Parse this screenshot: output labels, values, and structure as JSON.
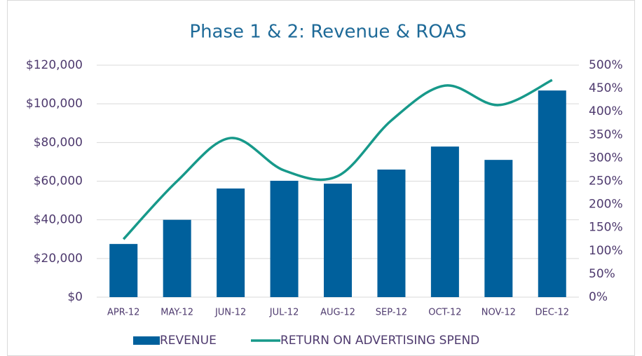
{
  "chart_data": {
    "type": "bar_line",
    "title": "Phase 1 & 2: Revenue & ROAS",
    "categories": [
      "APR-12",
      "MAY-12",
      "JUN-12",
      "JUL-12",
      "AUG-12",
      "SEP-12",
      "OCT-12",
      "NOV-12",
      "DEC-12"
    ],
    "series": [
      {
        "name": "REVENUE",
        "type": "bar",
        "color": "#00609c",
        "values": [
          27500,
          40000,
          56200,
          60200,
          58700,
          66000,
          77900,
          71000,
          106900
        ]
      },
      {
        "name": "RETURN ON ADVERTISING SPEND",
        "type": "line",
        "axis": "y2",
        "color": "#17998a",
        "values": [
          125,
          250,
          343,
          273,
          261,
          381,
          456,
          414,
          468
        ]
      }
    ],
    "ylim": [
      0,
      120000
    ],
    "yticks": [
      {
        "value": 0,
        "label": "$0"
      },
      {
        "value": 20000,
        "label": "$20,000"
      },
      {
        "value": 40000,
        "label": "$40,000"
      },
      {
        "value": 60000,
        "label": "$60,000"
      },
      {
        "value": 80000,
        "label": "$80,000"
      },
      {
        "value": 100000,
        "label": "$100,000"
      },
      {
        "value": 120000,
        "label": "$120,000"
      }
    ],
    "y2lim": [
      0,
      500
    ],
    "y2ticks": [
      {
        "value": 0,
        "label": "0%"
      },
      {
        "value": 50,
        "label": "50%"
      },
      {
        "value": 100,
        "label": "100%"
      },
      {
        "value": 150,
        "label": "150%"
      },
      {
        "value": 200,
        "label": "200%"
      },
      {
        "value": 250,
        "label": "250%"
      },
      {
        "value": 300,
        "label": "300%"
      },
      {
        "value": 350,
        "label": "350%"
      },
      {
        "value": 400,
        "label": "400%"
      },
      {
        "value": 450,
        "label": "450%"
      },
      {
        "value": 500,
        "label": "500%"
      }
    ],
    "grid": true,
    "legend": "bottom"
  }
}
